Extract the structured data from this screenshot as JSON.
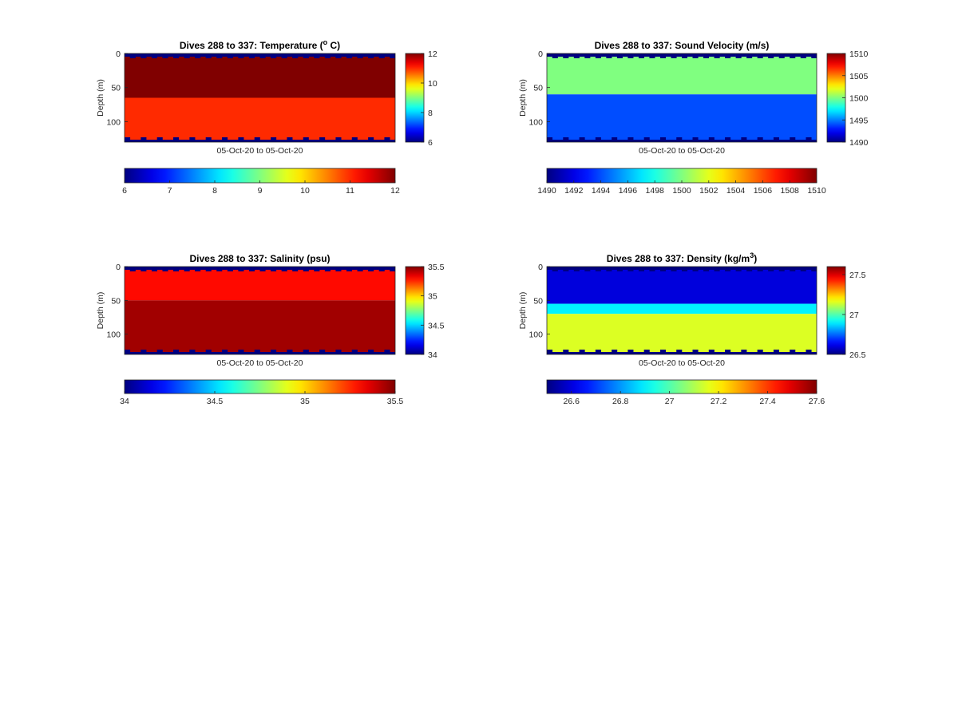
{
  "chart_data": [
    {
      "type": "heatmap",
      "title": "Dives 288 to 337: Temperature (",
      "title_sup": "o",
      "title_tail": " C)",
      "xlabel": "05-Oct-20 to 05-Oct-20",
      "ylabel": "Depth (m)",
      "ylim": [
        0,
        130
      ],
      "yticks": [
        0,
        50,
        100
      ],
      "clim": [
        6,
        12
      ],
      "side_colorbar_ticks": [
        "12",
        "10",
        "8",
        "6"
      ],
      "bottom_colorbar_ticks": [
        "6",
        "7",
        "8",
        "9",
        "10",
        "11",
        "12"
      ],
      "colormap": "jet",
      "x": [
        288,
        337
      ],
      "layers": [
        {
          "from_depth": 0,
          "to_depth": 65,
          "value": 12
        },
        {
          "from_depth": 65,
          "to_depth": 130,
          "value": 11
        }
      ],
      "surface_gap_value": 6,
      "bottom_gap_value": 6
    },
    {
      "type": "heatmap",
      "title": "Dives 288 to 337: Sound Velocity (m/s)",
      "title_sup": "",
      "title_tail": "",
      "xlabel": "05-Oct-20 to 05-Oct-20",
      "ylabel": "Depth (m)",
      "ylim": [
        0,
        130
      ],
      "yticks": [
        0,
        50,
        100
      ],
      "clim": [
        1490,
        1510
      ],
      "side_colorbar_ticks": [
        "1510",
        "1505",
        "1500",
        "1495",
        "1490"
      ],
      "bottom_colorbar_ticks": [
        "1490",
        "1492",
        "1494",
        "1496",
        "1498",
        "1500",
        "1502",
        "1504",
        "1506",
        "1508",
        "1510"
      ],
      "colormap": "jet",
      "x": [
        288,
        337
      ],
      "layers": [
        {
          "from_depth": 0,
          "to_depth": 60,
          "value": 1500
        },
        {
          "from_depth": 60,
          "to_depth": 130,
          "value": 1494
        }
      ],
      "surface_gap_value": 1490,
      "bottom_gap_value": 1490
    },
    {
      "type": "heatmap",
      "title": "Dives 288 to 337: Salinity (psu)",
      "title_sup": "",
      "title_tail": "",
      "xlabel": "05-Oct-20 to 05-Oct-20",
      "ylabel": "Depth (m)",
      "ylim": [
        0,
        130
      ],
      "yticks": [
        0,
        50,
        100
      ],
      "clim": [
        34,
        35.5
      ],
      "side_colorbar_ticks": [
        "35.5",
        "35",
        "34.5",
        "34"
      ],
      "bottom_colorbar_ticks": [
        "34",
        "34.5",
        "35",
        "35.5"
      ],
      "colormap": "jet",
      "x": [
        288,
        337
      ],
      "layers": [
        {
          "from_depth": 0,
          "to_depth": 50,
          "value": 35.3
        },
        {
          "from_depth": 50,
          "to_depth": 130,
          "value": 35.45
        }
      ],
      "surface_gap_value": 34,
      "bottom_gap_value": 34
    },
    {
      "type": "heatmap",
      "title": "Dives 288 to 337: Density (kg/m",
      "title_sup": "3",
      "title_tail": ")",
      "xlabel": "05-Oct-20 to 05-Oct-20",
      "ylabel": "Depth (m)",
      "ylim": [
        0,
        130
      ],
      "yticks": [
        0,
        50,
        100
      ],
      "clim": [
        26.5,
        27.6
      ],
      "side_colorbar_ticks": [
        "27.5",
        "27",
        "26.5"
      ],
      "bottom_colorbar_ticks": [
        "26.6",
        "26.8",
        "27",
        "27.2",
        "27.4",
        "27.6"
      ],
      "colormap": "jet",
      "x": [
        288,
        337
      ],
      "layers": [
        {
          "from_depth": 0,
          "to_depth": 55,
          "value": 26.6
        },
        {
          "from_depth": 55,
          "to_depth": 70,
          "value": 26.9
        },
        {
          "from_depth": 70,
          "to_depth": 130,
          "value": 27.15
        }
      ],
      "surface_gap_value": 26.5,
      "bottom_gap_value": 26.5
    }
  ]
}
